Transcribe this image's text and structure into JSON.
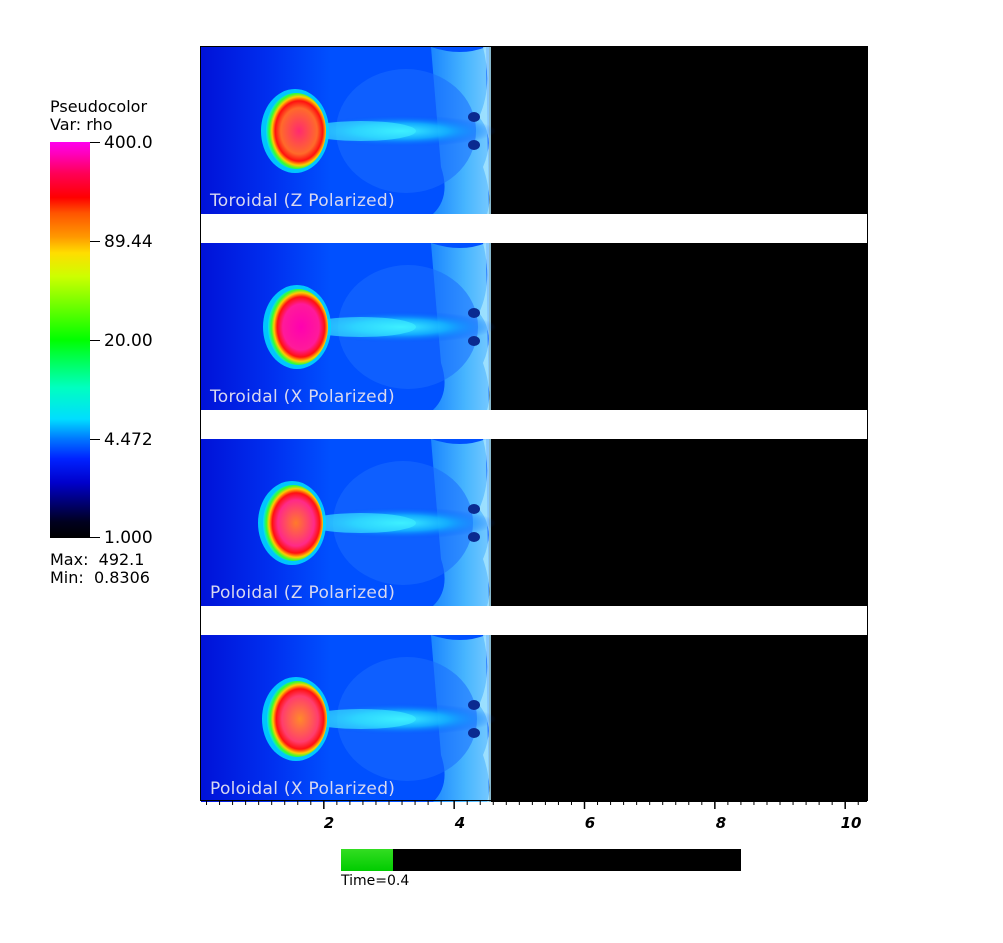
{
  "legend": {
    "title_line1": "Pseudocolor",
    "title_line2": "Var: rho",
    "ticks": [
      "400.0",
      "89.44",
      "20.00",
      "4.472",
      "1.000"
    ],
    "max_text": "Max:  492.1",
    "min_text": "Min:  0.8306"
  },
  "panels": [
    {
      "label": "Toroidal (Z Polarized)"
    },
    {
      "label": "Toroidal (X Polarized)"
    },
    {
      "label": "Poloidal (Z Polarized)"
    },
    {
      "label": "Poloidal (X Polarized)"
    }
  ],
  "x_axis": {
    "tick_labels": [
      "2",
      "4",
      "6",
      "8",
      "10"
    ]
  },
  "time": {
    "label": "Time=0.4",
    "progress": 0.13
  }
}
